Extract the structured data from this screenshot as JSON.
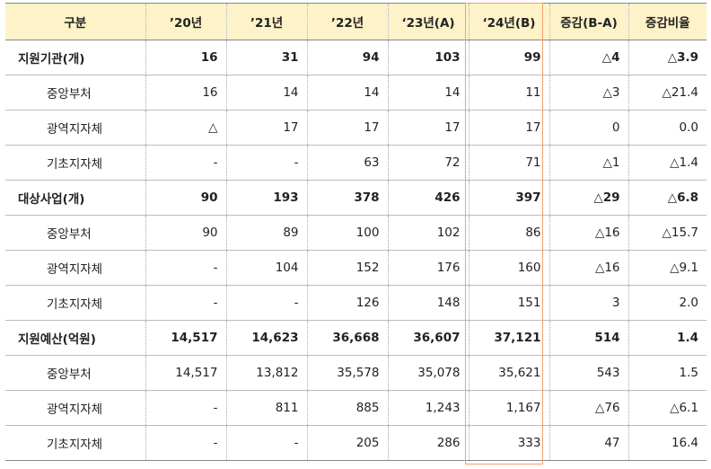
{
  "header": [
    "구분",
    "’20년",
    "’21년",
    "’22년",
    "‘23년(A)",
    "‘24년(B)",
    "증감(B-A)",
    "증감비율"
  ],
  "groups": [
    {
      "label": "지원기관(개)",
      "values": [
        "16",
        "31",
        "94",
        "103",
        "99",
        "△4",
        "△3.9"
      ],
      "rows": [
        {
          "label": "중앙부처",
          "values": [
            "16",
            "14",
            "14",
            "14",
            "11",
            "△3",
            "△21.4"
          ]
        },
        {
          "label": "광역지자체",
          "values": [
            "△",
            "17",
            "17",
            "17",
            "17",
            "0",
            "0.0"
          ]
        },
        {
          "label": "기초지자체",
          "values": [
            "-",
            "-",
            "63",
            "72",
            "71",
            "△1",
            "△1.4"
          ]
        }
      ]
    },
    {
      "label": "대상사업(개)",
      "values": [
        "90",
        "193",
        "378",
        "426",
        "397",
        "△29",
        "△6.8"
      ],
      "rows": [
        {
          "label": "중앙부처",
          "values": [
            "90",
            "89",
            "100",
            "102",
            "86",
            "△16",
            "△15.7"
          ]
        },
        {
          "label": "광역지자체",
          "values": [
            "-",
            "104",
            "152",
            "176",
            "160",
            "△16",
            "△9.1"
          ]
        },
        {
          "label": "기초지자체",
          "values": [
            "-",
            "-",
            "126",
            "148",
            "151",
            "3",
            "2.0"
          ]
        }
      ]
    },
    {
      "label": "지원예산(억원)",
      "values": [
        "14,517",
        "14,623",
        "36,668",
        "36,607",
        "37,121",
        "514",
        "1.4"
      ],
      "rows": [
        {
          "label": "중앙부처",
          "values": [
            "14,517",
            "13,812",
            "35,578",
            "35,078",
            "35,621",
            "543",
            "1.5"
          ]
        },
        {
          "label": "광역지자체",
          "values": [
            "-",
            "811",
            "885",
            "1,243",
            "1,167",
            "△76",
            "△6.1"
          ]
        },
        {
          "label": "기초지자체",
          "values": [
            "-",
            "-",
            "205",
            "286",
            "333",
            "47",
            "16.4"
          ]
        }
      ]
    }
  ]
}
